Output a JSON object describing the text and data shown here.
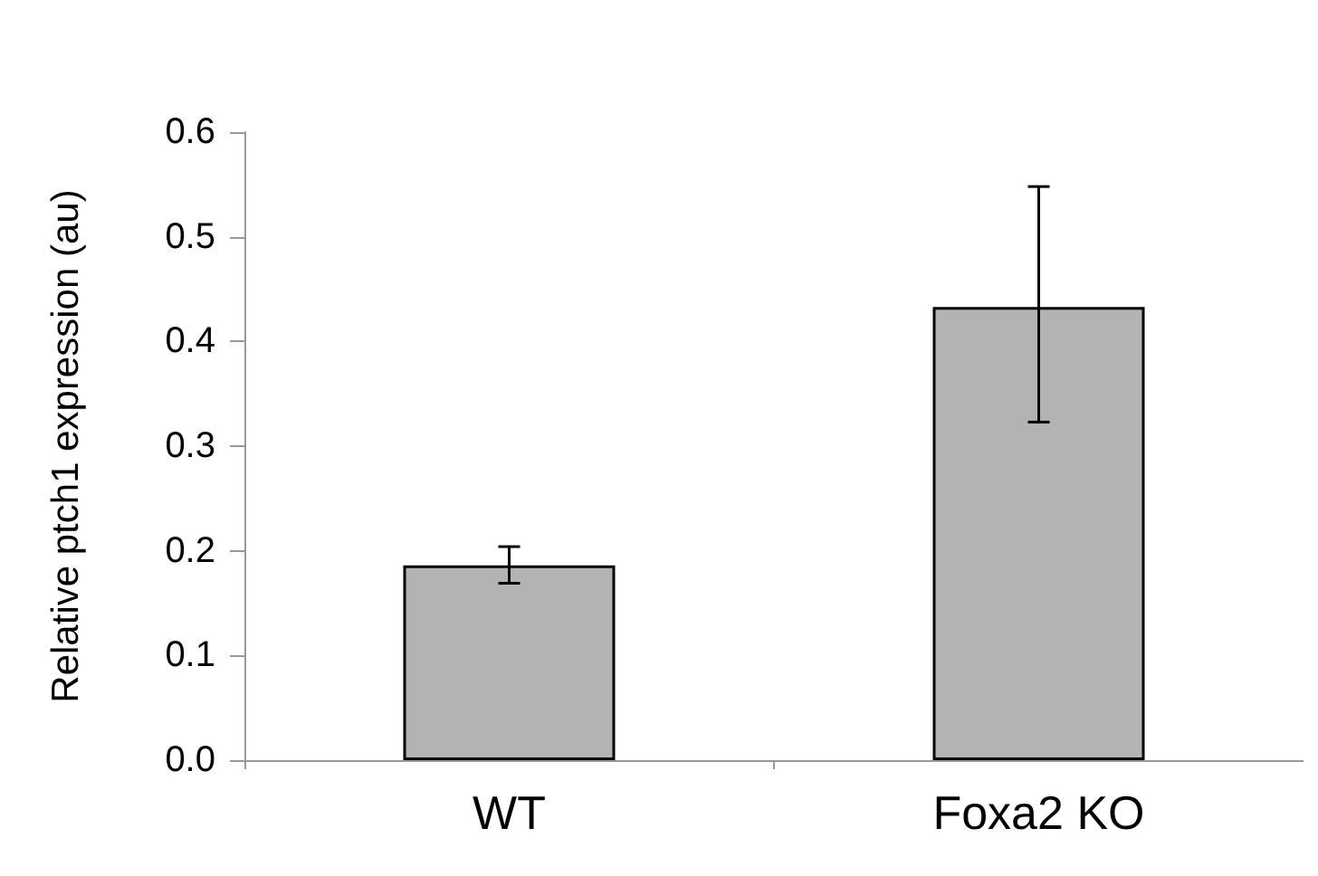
{
  "chart_data": {
    "type": "bar",
    "ylabel": "Relative ptch1 expression (au)",
    "categories": [
      "WT",
      "Foxa2 KO"
    ],
    "values": [
      0.186,
      0.433
    ],
    "errors": [
      [
        0.169,
        0.204
      ],
      [
        0.323,
        0.548
      ]
    ],
    "color": "#b3b3b3",
    "ylim": [
      0,
      0.6
    ],
    "yticks": [
      {
        "value": 0,
        "label": "0.0"
      },
      0.1,
      0.2,
      0.3,
      0.4,
      0.5,
      0.6
    ],
    "grid": false
  }
}
